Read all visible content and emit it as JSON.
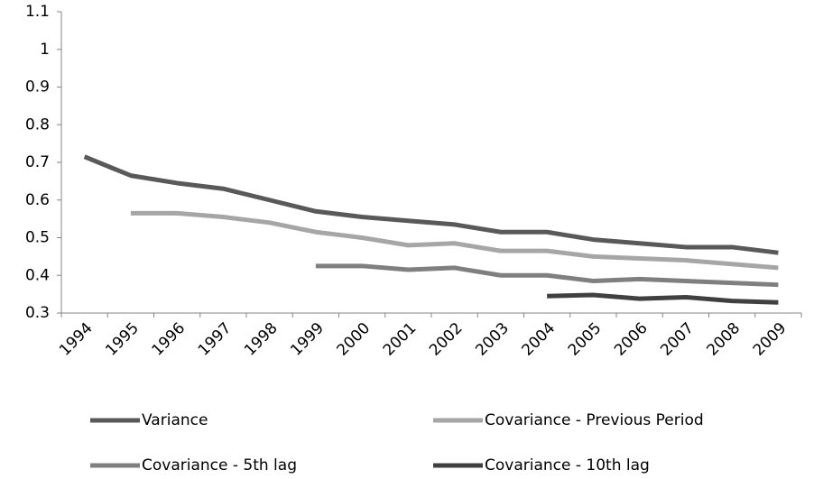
{
  "chart_data": {
    "type": "line",
    "categories": [
      "1994",
      "1995",
      "1996",
      "1997",
      "1998",
      "1999",
      "2000",
      "2001",
      "2002",
      "2003",
      "2004",
      "2005",
      "2006",
      "2007",
      "2008",
      "2009"
    ],
    "series": [
      {
        "name": "Variance",
        "color": "#595959",
        "values": [
          0.715,
          0.665,
          0.645,
          0.63,
          0.6,
          0.57,
          0.555,
          0.545,
          0.535,
          0.515,
          0.515,
          0.495,
          0.485,
          0.475,
          0.475,
          0.46
        ]
      },
      {
        "name": "Covariance - Previous Period",
        "color": "#a6a6a6",
        "values": [
          null,
          0.565,
          0.565,
          0.555,
          0.54,
          0.515,
          0.5,
          0.48,
          0.485,
          0.465,
          0.465,
          0.45,
          0.445,
          0.44,
          0.43,
          0.42
        ]
      },
      {
        "name": "Covariance - 5th lag",
        "color": "#7f7f7f",
        "values": [
          null,
          null,
          null,
          null,
          null,
          0.425,
          0.425,
          0.415,
          0.42,
          0.4,
          0.4,
          0.385,
          0.39,
          0.385,
          0.38,
          0.375
        ]
      },
      {
        "name": "Covariance - 10th lag",
        "color": "#404040",
        "values": [
          null,
          null,
          null,
          null,
          null,
          null,
          null,
          null,
          null,
          null,
          0.345,
          0.348,
          0.338,
          0.342,
          0.332,
          0.328
        ]
      }
    ],
    "ylim": [
      0.3,
      1.1
    ],
    "yticks": [
      0.3,
      0.4,
      0.5,
      0.6,
      0.7,
      0.8,
      0.9,
      1,
      1.1
    ],
    "grid": false,
    "legend": "bottom"
  }
}
